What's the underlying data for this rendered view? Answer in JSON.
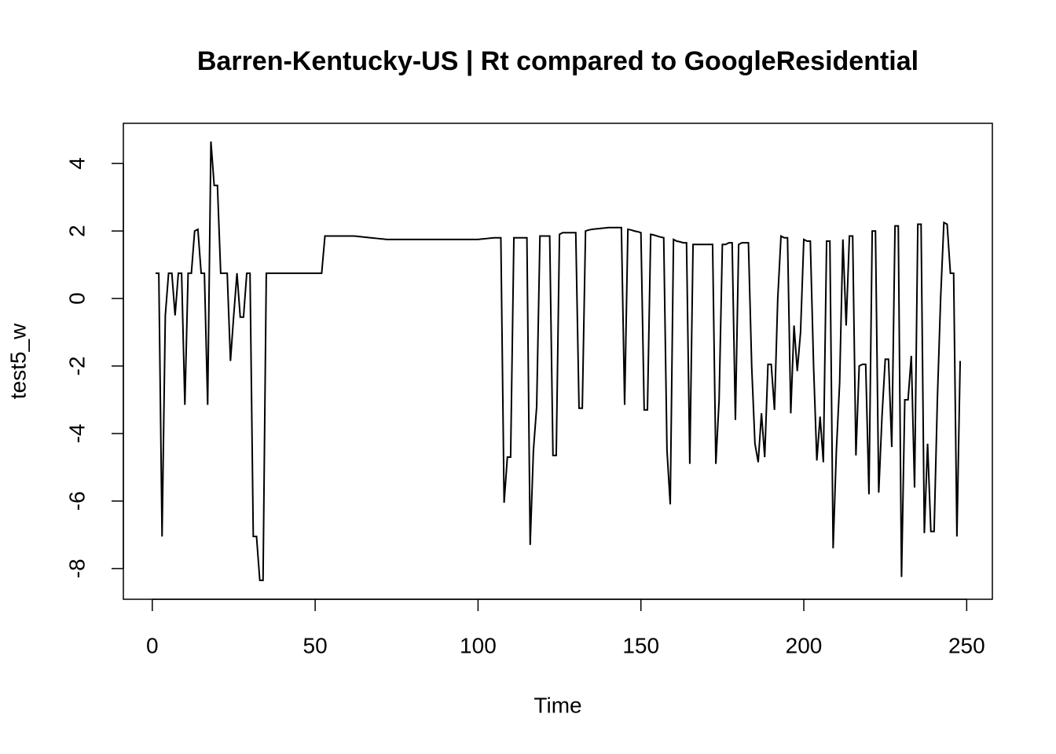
{
  "chart_data": {
    "type": "line",
    "title": "Barren-Kentucky-US | Rt compared to GoogleResidential",
    "xlabel": "Time",
    "ylabel": "test5_w",
    "color": "#000000",
    "x": [
      1,
      2,
      3,
      4,
      5,
      6,
      7,
      8,
      9,
      10,
      11,
      12,
      13,
      14,
      15,
      16,
      17,
      18,
      19,
      20,
      21,
      22,
      23,
      24,
      25,
      26,
      27,
      28,
      29,
      30,
      31,
      32,
      33,
      34,
      35,
      36,
      37,
      38,
      39,
      40,
      41,
      42,
      43,
      44,
      45,
      46,
      47,
      48,
      49,
      50,
      51,
      52,
      53,
      54,
      55,
      56,
      57,
      58,
      59,
      60,
      61,
      62,
      63,
      64,
      65,
      66,
      67,
      68,
      69,
      70,
      71,
      72,
      73,
      74,
      75,
      76,
      77,
      78,
      79,
      80,
      81,
      82,
      83,
      84,
      85,
      86,
      87,
      88,
      89,
      90,
      91,
      92,
      93,
      94,
      95,
      96,
      97,
      98,
      99,
      100,
      101,
      102,
      103,
      104,
      105,
      106,
      107,
      108,
      109,
      110,
      111,
      112,
      113,
      114,
      115,
      116,
      117,
      118,
      119,
      120,
      121,
      122,
      123,
      124,
      125,
      126,
      127,
      128,
      129,
      130,
      131,
      132,
      133,
      134,
      135,
      136,
      137,
      138,
      139,
      140,
      141,
      142,
      143,
      144,
      145,
      146,
      147,
      148,
      149,
      150,
      151,
      152,
      153,
      154,
      155,
      156,
      157,
      158,
      159,
      160,
      161,
      162,
      163,
      164,
      165,
      166,
      167,
      168,
      169,
      170,
      171,
      172,
      173,
      174,
      175,
      176,
      177,
      178,
      179,
      180,
      181,
      182,
      183,
      184,
      185,
      186,
      187,
      188,
      189,
      190,
      191,
      192,
      193,
      194,
      195,
      196,
      197,
      198,
      199,
      200,
      201,
      202,
      203,
      204,
      205,
      206,
      207,
      208,
      209,
      210,
      211,
      212,
      213,
      214,
      215,
      216,
      217,
      218,
      219,
      220,
      221,
      222,
      223,
      224,
      225,
      226,
      227,
      228,
      229,
      230,
      231,
      232,
      233,
      234,
      235,
      236,
      237,
      238,
      239,
      240,
      241,
      242,
      243,
      244,
      245,
      246,
      247,
      248
    ],
    "values": [
      0.75,
      0.75,
      -7.05,
      -0.5,
      0.75,
      0.75,
      -0.5,
      0.75,
      0.75,
      -3.15,
      0.75,
      0.75,
      2.0,
      2.05,
      0.75,
      0.75,
      -3.15,
      4.65,
      3.35,
      3.35,
      0.75,
      0.75,
      0.75,
      -1.85,
      -0.5,
      0.75,
      -0.55,
      -0.55,
      0.75,
      0.75,
      -7.05,
      -7.05,
      -8.35,
      -8.35,
      0.75,
      0.75,
      0.75,
      0.75,
      0.75,
      0.75,
      0.75,
      0.75,
      0.75,
      0.75,
      0.75,
      0.75,
      0.75,
      0.75,
      0.75,
      0.75,
      0.75,
      0.75,
      1.85,
      1.85,
      1.85,
      1.85,
      1.85,
      1.85,
      1.85,
      1.85,
      1.85,
      1.85,
      1.84,
      1.83,
      1.82,
      1.81,
      1.8,
      1.79,
      1.78,
      1.77,
      1.76,
      1.75,
      1.75,
      1.75,
      1.75,
      1.75,
      1.75,
      1.75,
      1.75,
      1.75,
      1.75,
      1.75,
      1.75,
      1.75,
      1.75,
      1.75,
      1.75,
      1.75,
      1.75,
      1.75,
      1.75,
      1.75,
      1.75,
      1.75,
      1.75,
      1.75,
      1.75,
      1.75,
      1.75,
      1.75,
      1.76,
      1.77,
      1.78,
      1.79,
      1.8,
      1.8,
      1.8,
      -6.05,
      -4.7,
      -4.7,
      1.8,
      1.8,
      1.8,
      1.8,
      1.8,
      -7.3,
      -4.5,
      -3.2,
      1.85,
      1.85,
      1.85,
      1.85,
      -4.65,
      -4.65,
      1.9,
      1.95,
      1.95,
      1.95,
      1.95,
      1.95,
      -3.25,
      -3.25,
      2.0,
      2.03,
      2.05,
      2.06,
      2.07,
      2.08,
      2.09,
      2.1,
      2.1,
      2.1,
      2.1,
      2.1,
      -3.15,
      2.05,
      2.03,
      2.0,
      1.98,
      1.95,
      -3.3,
      -3.3,
      1.9,
      1.88,
      1.85,
      1.82,
      1.8,
      -4.5,
      -6.1,
      1.75,
      1.7,
      1.68,
      1.65,
      1.65,
      -4.9,
      1.6,
      1.6,
      1.6,
      1.6,
      1.6,
      1.6,
      1.6,
      -4.9,
      -3.0,
      1.6,
      1.6,
      1.65,
      1.65,
      -3.6,
      1.6,
      1.65,
      1.65,
      1.65,
      -2.0,
      -4.3,
      -4.85,
      -3.4,
      -4.7,
      -1.95,
      -1.95,
      -3.3,
      0,
      1.85,
      1.8,
      1.8,
      -3.4,
      -0.8,
      -2.15,
      -1.0,
      1.75,
      1.7,
      1.7,
      -2.0,
      -4.8,
      -3.5,
      -4.85,
      1.7,
      1.7,
      -7.4,
      -4.5,
      -2.5,
      1.75,
      -0.8,
      1.85,
      1.85,
      -4.65,
      -2.0,
      -1.95,
      -1.95,
      -5.8,
      2.0,
      2.0,
      -5.75,
      -3.5,
      -1.8,
      -1.8,
      -4.4,
      2.15,
      2.15,
      -8.25,
      -3.0,
      -3.0,
      -1.7,
      -5.6,
      2.2,
      2.2,
      -6.95,
      -4.3,
      -6.9,
      -6.9,
      -3.0,
      0,
      2.25,
      2.2,
      0.75,
      0.75,
      -7.05,
      -1.85
    ],
    "xlim": [
      -8.88,
      257.88
    ],
    "xticks": [
      0,
      50,
      100,
      150,
      200,
      250
    ],
    "ylim": [
      -8.91,
      5.19
    ],
    "yticks": [
      -8,
      -6,
      -4,
      -2,
      0,
      2,
      4
    ]
  }
}
